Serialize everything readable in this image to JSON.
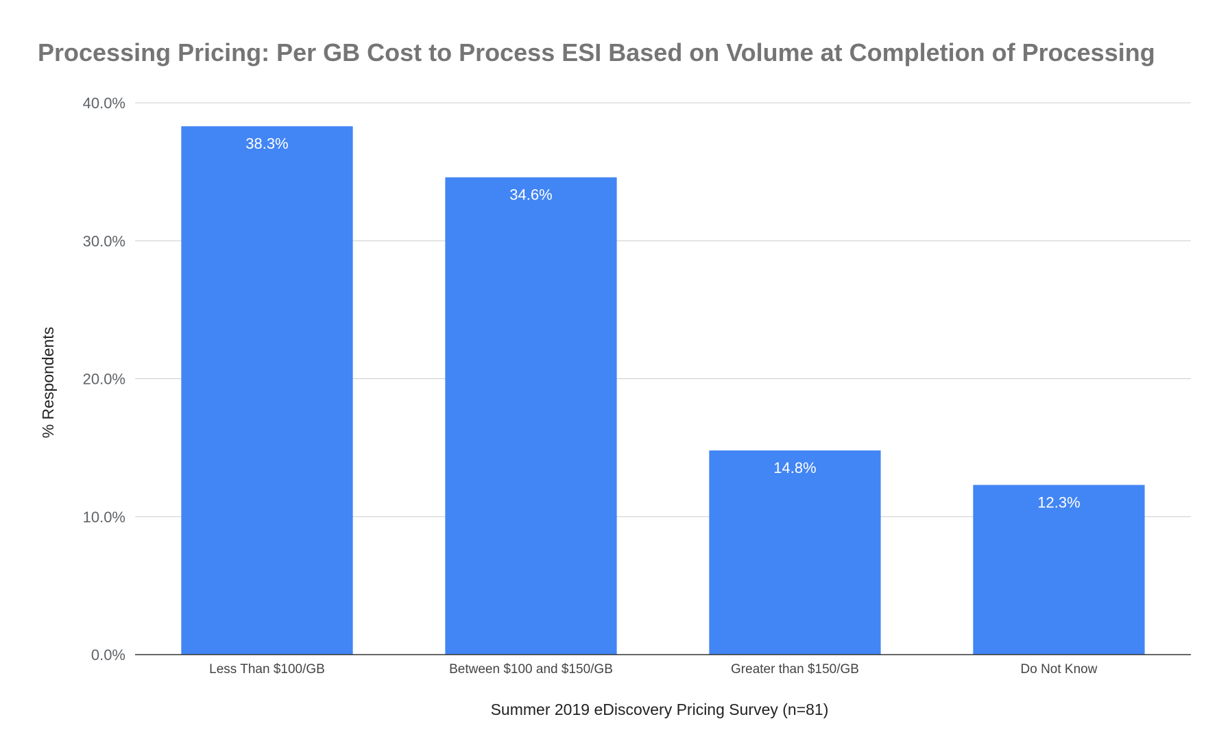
{
  "chart_data": {
    "type": "bar",
    "title": "Processing Pricing: Per GB Cost to Process ESI Based on Volume at Completion of Processing",
    "xlabel": "Summer 2019 eDiscovery Pricing Survey (n=81)",
    "ylabel": "% Respondents",
    "categories": [
      "Less Than $100/GB",
      "Between $100 and $150/GB",
      "Greater than $150/GB",
      "Do Not Know"
    ],
    "values": [
      38.3,
      34.6,
      14.8,
      12.3
    ],
    "data_labels": [
      "38.3%",
      "34.6%",
      "14.8%",
      "12.3%"
    ],
    "ylim": [
      0,
      40
    ],
    "yticks": [
      0,
      10,
      20,
      30,
      40
    ],
    "ytick_labels": [
      "0.0%",
      "10.0%",
      "20.0%",
      "30.0%",
      "40.0%"
    ],
    "grid": true,
    "legend": "none",
    "colors": {
      "bar": "#4285f4",
      "grid": "#cccccc",
      "axis": "#333333",
      "title": "#757575"
    }
  }
}
